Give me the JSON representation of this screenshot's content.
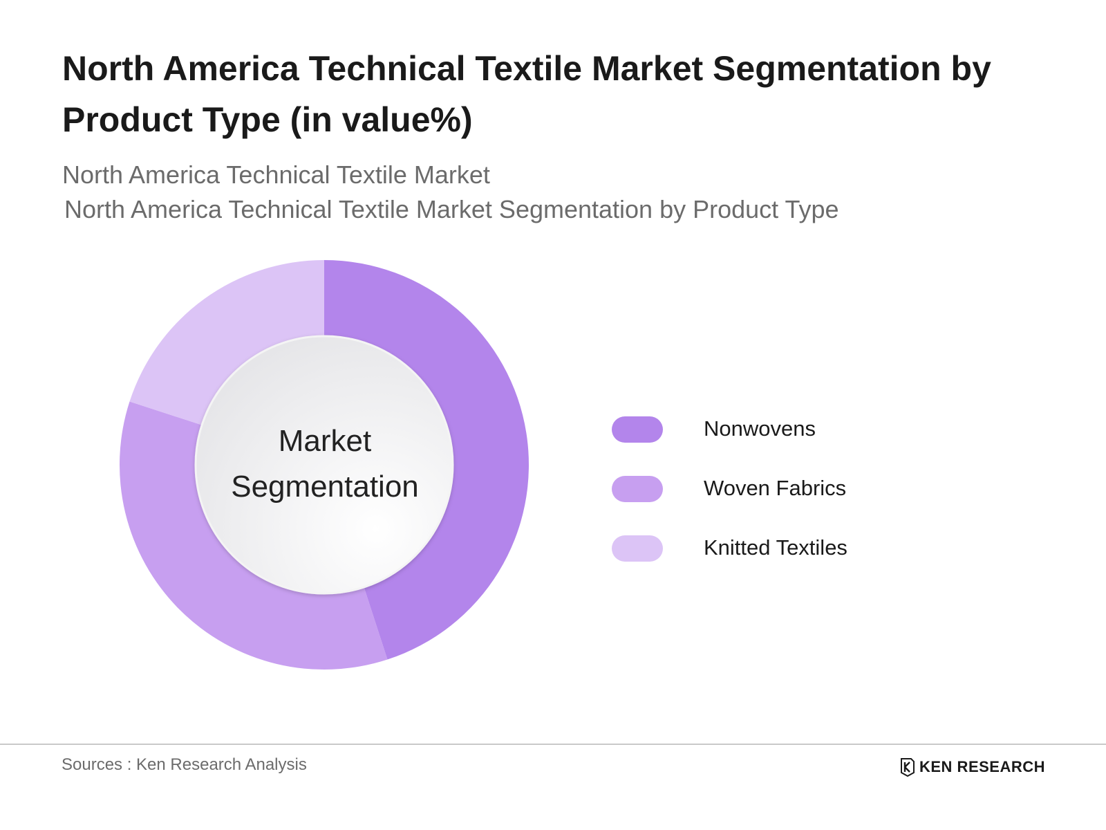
{
  "title": "North America Technical Textile Market Segmentation by Product Type (in value%)",
  "subtitle_1": "North America Technical Textile Market",
  "subtitle_2": "North America Technical Textile Market Segmentation by Product Type",
  "chart_data": {
    "type": "pie",
    "variant": "donut",
    "center_label": [
      "Market",
      "Segmentation"
    ],
    "categories": [
      "Nonwovens",
      "Woven Fabrics",
      "Knitted Textiles"
    ],
    "values": [
      45,
      35,
      20
    ],
    "unit": "%",
    "colors": [
      "#b385eb",
      "#c79ff0",
      "#dcc4f6"
    ],
    "start_angle": "12 o'clock",
    "direction": "clockwise",
    "legend_position": "right"
  },
  "footer": {
    "sources": "Sources : Ken Research Analysis",
    "logo_text": "KEN RESEARCH"
  }
}
